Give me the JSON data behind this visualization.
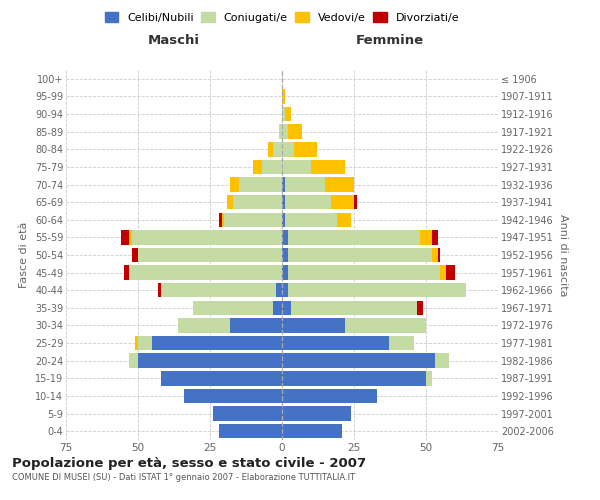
{
  "age_groups": [
    "0-4",
    "5-9",
    "10-14",
    "15-19",
    "20-24",
    "25-29",
    "30-34",
    "35-39",
    "40-44",
    "45-49",
    "50-54",
    "55-59",
    "60-64",
    "65-69",
    "70-74",
    "75-79",
    "80-84",
    "85-89",
    "90-94",
    "95-99",
    "100+"
  ],
  "birth_years": [
    "2002-2006",
    "1997-2001",
    "1992-1996",
    "1987-1991",
    "1982-1986",
    "1977-1981",
    "1972-1976",
    "1967-1971",
    "1962-1966",
    "1957-1961",
    "1952-1956",
    "1947-1951",
    "1942-1946",
    "1937-1941",
    "1932-1936",
    "1927-1931",
    "1922-1926",
    "1917-1921",
    "1912-1916",
    "1907-1911",
    "≤ 1906"
  ],
  "male": {
    "celibi": [
      22,
      24,
      34,
      42,
      50,
      45,
      18,
      3,
      2,
      0,
      0,
      0,
      0,
      0,
      0,
      0,
      0,
      0,
      0,
      0,
      0
    ],
    "coniugati": [
      0,
      0,
      0,
      0,
      3,
      5,
      18,
      28,
      40,
      53,
      50,
      52,
      20,
      17,
      15,
      7,
      3,
      1,
      0,
      0,
      0
    ],
    "vedovi": [
      0,
      0,
      0,
      0,
      0,
      1,
      0,
      0,
      0,
      0,
      0,
      1,
      1,
      2,
      3,
      3,
      2,
      0,
      0,
      0,
      0
    ],
    "divorziati": [
      0,
      0,
      0,
      0,
      0,
      0,
      0,
      0,
      1,
      2,
      2,
      3,
      1,
      0,
      0,
      0,
      0,
      0,
      0,
      0,
      0
    ]
  },
  "female": {
    "nubili": [
      21,
      24,
      33,
      50,
      53,
      37,
      22,
      3,
      2,
      2,
      2,
      2,
      1,
      1,
      1,
      0,
      0,
      0,
      0,
      0,
      0
    ],
    "coniugate": [
      0,
      0,
      0,
      2,
      5,
      9,
      28,
      44,
      62,
      53,
      50,
      46,
      18,
      16,
      14,
      10,
      4,
      2,
      1,
      0,
      0
    ],
    "vedove": [
      0,
      0,
      0,
      0,
      0,
      0,
      0,
      0,
      0,
      2,
      2,
      4,
      5,
      8,
      10,
      12,
      8,
      5,
      2,
      1,
      0
    ],
    "divorziate": [
      0,
      0,
      0,
      0,
      0,
      0,
      0,
      2,
      0,
      3,
      1,
      2,
      0,
      1,
      0,
      0,
      0,
      0,
      0,
      0,
      0
    ]
  },
  "color_celibi": "#4472c4",
  "color_coniugati": "#c5dba4",
  "color_vedovi": "#ffc000",
  "color_divorziati": "#c00000",
  "xlim": 75,
  "title": "Popolazione per età, sesso e stato civile - 2007",
  "subtitle": "COMUNE DI MUSEI (SU) - Dati ISTAT 1° gennaio 2007 - Elaborazione TUTTITALIA.IT",
  "ylabel_left": "Fasce di età",
  "ylabel_right": "Anni di nascita",
  "xlabel_left": "Maschi",
  "xlabel_right": "Femmine"
}
